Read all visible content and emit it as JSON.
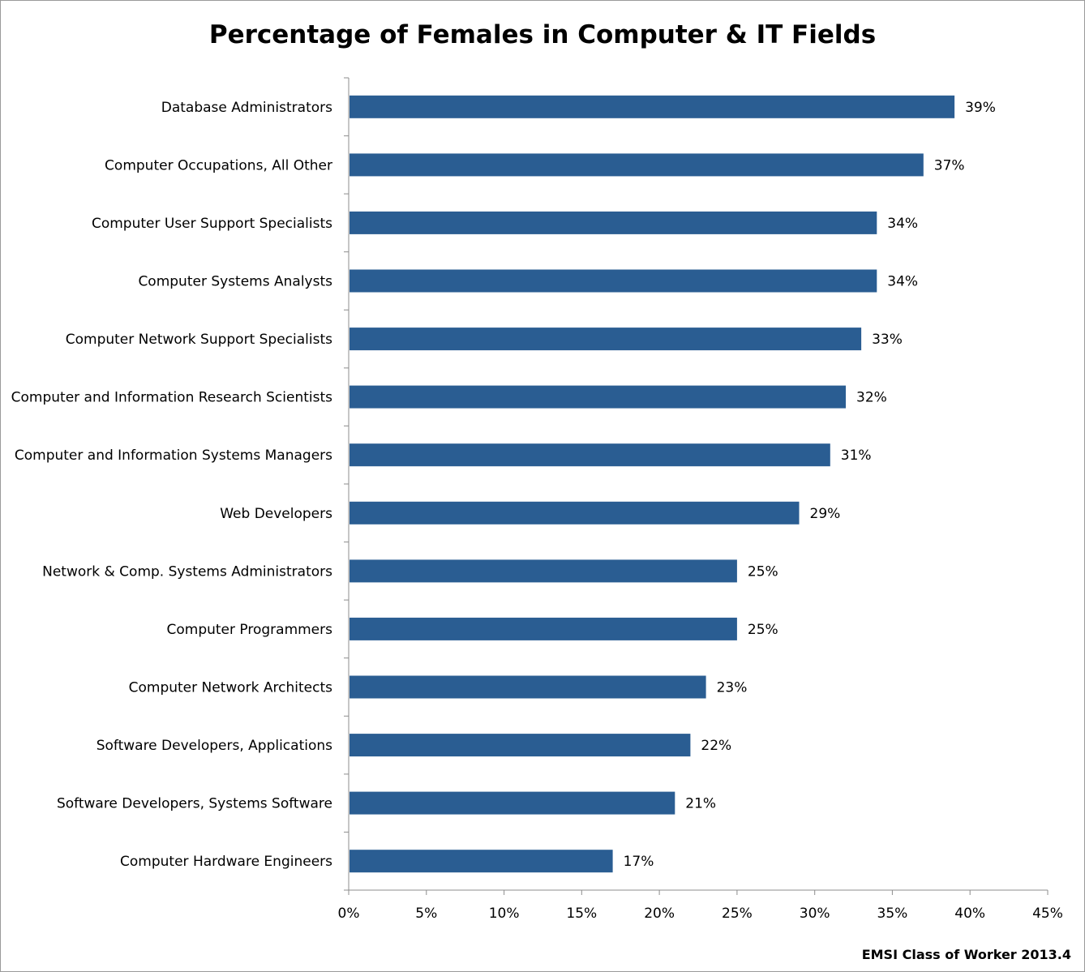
{
  "chart_data": {
    "type": "bar",
    "orientation": "horizontal",
    "title": "Percentage of Females in Computer & IT Fields",
    "categories": [
      "Database Administrators",
      "Computer Occupations, All Other",
      "Computer User Support Specialists",
      "Computer Systems Analysts",
      "Computer Network Support Specialists",
      "Computer and Information Research Scientists",
      "Computer and Information Systems Managers",
      "Web Developers",
      "Network & Comp. Systems Administrators",
      "Computer Programmers",
      "Computer Network Architects",
      "Software Developers, Applications",
      "Software Developers, Systems Software",
      "Computer Hardware Engineers"
    ],
    "values": [
      39,
      37,
      34,
      34,
      33,
      32,
      31,
      29,
      25,
      25,
      23,
      22,
      21,
      17
    ],
    "data_labels": [
      "39%",
      "37%",
      "34%",
      "34%",
      "33%",
      "32%",
      "31%",
      "29%",
      "25%",
      "25%",
      "23%",
      "22%",
      "21%",
      "17%"
    ],
    "x_ticks": [
      0,
      5,
      10,
      15,
      20,
      25,
      30,
      35,
      40,
      45
    ],
    "x_tick_labels": [
      "0%",
      "5%",
      "10%",
      "15%",
      "20%",
      "25%",
      "30%",
      "35%",
      "40%",
      "45%"
    ],
    "xlim": [
      0,
      45
    ],
    "xlabel": "",
    "ylabel": "",
    "grid": false,
    "bar_color": "#2a5d92",
    "axis_color": "#8c8c8c"
  },
  "source_note": "EMSI Class of Worker 2013.4"
}
